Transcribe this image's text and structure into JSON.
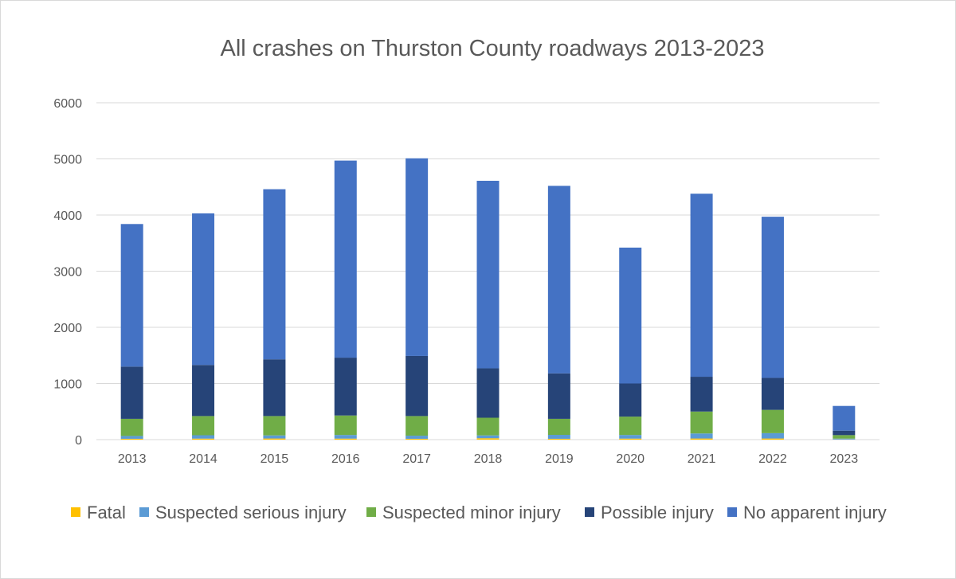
{
  "chart_data": {
    "type": "bar",
    "stacked": true,
    "title": "All crashes on Thurston County roadways 2013-2023",
    "xlabel": "",
    "ylabel": "",
    "ylim": [
      0,
      6000
    ],
    "yticks": [
      0,
      1000,
      2000,
      3000,
      4000,
      5000,
      6000
    ],
    "grid": true,
    "legend_position": "bottom",
    "categories": [
      "2013",
      "2014",
      "2015",
      "2016",
      "2017",
      "2018",
      "2019",
      "2020",
      "2021",
      "2022",
      "2023"
    ],
    "series": [
      {
        "name": "Fatal",
        "color": "#FFC000",
        "values": [
          15,
          18,
          20,
          18,
          15,
          25,
          15,
          18,
          20,
          20,
          3
        ]
      },
      {
        "name": "Suspected serious injury",
        "color": "#5B9BD5",
        "values": [
          50,
          60,
          55,
          65,
          55,
          50,
          70,
          65,
          90,
          95,
          15
        ]
      },
      {
        "name": "Suspected minor injury",
        "color": "#70AD47",
        "values": [
          305,
          342,
          345,
          347,
          350,
          315,
          285,
          327,
          390,
          415,
          62
        ]
      },
      {
        "name": "Possible injury",
        "color": "#264478",
        "values": [
          930,
          910,
          1010,
          1030,
          1070,
          880,
          810,
          590,
          620,
          570,
          80
        ]
      },
      {
        "name": "No apparent injury",
        "color": "#4472C4",
        "values": [
          2540,
          2700,
          3030,
          3510,
          3520,
          3340,
          3340,
          2420,
          3260,
          2870,
          440
        ]
      }
    ]
  }
}
